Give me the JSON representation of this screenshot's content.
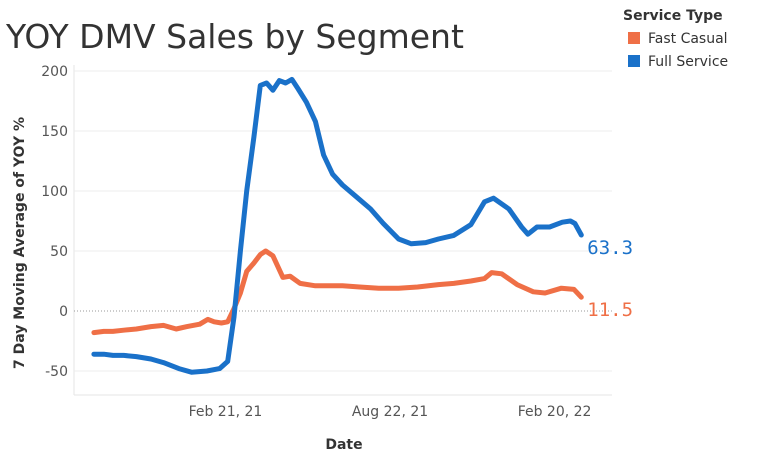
{
  "chart_data": {
    "type": "line",
    "title": "YOY DMV Sales by Segment",
    "xlabel": "Date",
    "ylabel": "7 Day Moving Average of YOY %",
    "x_tick_labels": [
      "Feb 21, 21",
      "Aug 22, 21",
      "Feb 20, 22"
    ],
    "x_range": [
      "2020-09-07",
      "2022-04-25"
    ],
    "y_ticks": [
      -50,
      0,
      50,
      100,
      150,
      200
    ],
    "ylim": [
      -70,
      205
    ],
    "grid": true,
    "zero_line": "dotted",
    "legend": {
      "title": "Service Type",
      "position": "top-right"
    },
    "series": [
      {
        "name": "Fast Casual",
        "color": "#ef6f46",
        "end_label": "11.5",
        "points": [
          [
            "2020-09-29",
            -18
          ],
          [
            "2020-10-10",
            -17
          ],
          [
            "2020-10-20",
            -17
          ],
          [
            "2020-11-01",
            -16
          ],
          [
            "2020-11-15",
            -15
          ],
          [
            "2020-12-01",
            -13
          ],
          [
            "2020-12-15",
            -12
          ],
          [
            "2020-12-29",
            -15
          ],
          [
            "2021-01-10",
            -13
          ],
          [
            "2021-01-24",
            -11
          ],
          [
            "2021-02-02",
            -7
          ],
          [
            "2021-02-09",
            -9
          ],
          [
            "2021-02-17",
            -10
          ],
          [
            "2021-02-24",
            -9
          ],
          [
            "2021-03-03",
            2
          ],
          [
            "2021-03-10",
            15
          ],
          [
            "2021-03-17",
            33
          ],
          [
            "2021-03-25",
            40
          ],
          [
            "2021-04-01",
            47
          ],
          [
            "2021-04-07",
            50
          ],
          [
            "2021-04-15",
            46
          ],
          [
            "2021-04-26",
            28
          ],
          [
            "2021-05-04",
            29
          ],
          [
            "2021-05-15",
            23
          ],
          [
            "2021-06-01",
            21
          ],
          [
            "2021-06-15",
            21
          ],
          [
            "2021-07-01",
            21
          ],
          [
            "2021-07-20",
            20
          ],
          [
            "2021-08-10",
            19
          ],
          [
            "2021-09-01",
            19
          ],
          [
            "2021-09-22",
            20
          ],
          [
            "2021-10-15",
            22
          ],
          [
            "2021-11-01",
            23
          ],
          [
            "2021-11-20",
            25
          ],
          [
            "2021-12-05",
            27
          ],
          [
            "2021-12-13",
            32
          ],
          [
            "2021-12-24",
            31
          ],
          [
            "2022-01-10",
            22
          ],
          [
            "2022-01-28",
            16
          ],
          [
            "2022-02-10",
            15
          ],
          [
            "2022-02-28",
            19
          ],
          [
            "2022-03-14",
            18
          ],
          [
            "2022-03-22",
            11.5
          ]
        ]
      },
      {
        "name": "Full Service",
        "color": "#1a71c9",
        "end_label": "63.3",
        "points": [
          [
            "2020-09-29",
            -36
          ],
          [
            "2020-10-10",
            -36
          ],
          [
            "2020-10-20",
            -37
          ],
          [
            "2020-11-01",
            -37
          ],
          [
            "2020-11-15",
            -38
          ],
          [
            "2020-12-01",
            -40
          ],
          [
            "2020-12-15",
            -43
          ],
          [
            "2021-01-01",
            -48
          ],
          [
            "2021-01-15",
            -51
          ],
          [
            "2021-02-01",
            -50
          ],
          [
            "2021-02-15",
            -48
          ],
          [
            "2021-02-24",
            -42
          ],
          [
            "2021-03-03",
            -5
          ],
          [
            "2021-03-10",
            50
          ],
          [
            "2021-03-17",
            100
          ],
          [
            "2021-03-25",
            145
          ],
          [
            "2021-04-01",
            188
          ],
          [
            "2021-04-08",
            190
          ],
          [
            "2021-04-15",
            184
          ],
          [
            "2021-04-22",
            192
          ],
          [
            "2021-04-29",
            190
          ],
          [
            "2021-05-06",
            193
          ],
          [
            "2021-05-13",
            185
          ],
          [
            "2021-05-22",
            174
          ],
          [
            "2021-06-01",
            158
          ],
          [
            "2021-06-10",
            130
          ],
          [
            "2021-06-20",
            114
          ],
          [
            "2021-07-01",
            105
          ],
          [
            "2021-07-15",
            96
          ],
          [
            "2021-08-01",
            85
          ],
          [
            "2021-08-15",
            73
          ],
          [
            "2021-09-01",
            60
          ],
          [
            "2021-09-15",
            56
          ],
          [
            "2021-10-01",
            57
          ],
          [
            "2021-10-15",
            60
          ],
          [
            "2021-11-01",
            63
          ],
          [
            "2021-11-20",
            72
          ],
          [
            "2021-12-05",
            91
          ],
          [
            "2021-12-15",
            94
          ],
          [
            "2022-01-01",
            85
          ],
          [
            "2022-01-15",
            70
          ],
          [
            "2022-01-22",
            64
          ],
          [
            "2022-02-01",
            70
          ],
          [
            "2022-02-15",
            70
          ],
          [
            "2022-03-01",
            74
          ],
          [
            "2022-03-10",
            75
          ],
          [
            "2022-03-15",
            73
          ],
          [
            "2022-03-22",
            63.3
          ]
        ]
      }
    ]
  }
}
